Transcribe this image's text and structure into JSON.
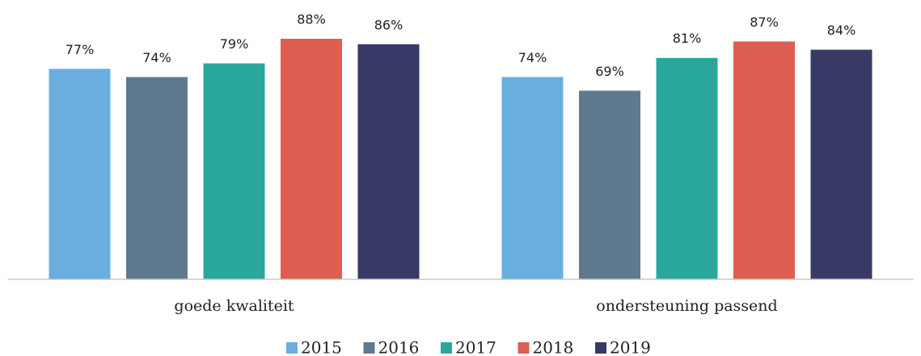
{
  "chart_data": {
    "type": "bar",
    "categories": [
      "goede kwaliteit",
      "ondersteuning passend"
    ],
    "series": [
      {
        "name": "2015",
        "color": "#6aaee0",
        "values": [
          77,
          74
        ],
        "value_labels": [
          "77%",
          "74%"
        ]
      },
      {
        "name": "2016",
        "color": "#5f7a8f",
        "values": [
          74,
          69
        ],
        "value_labels": [
          "74%",
          "69%"
        ]
      },
      {
        "name": "2017",
        "color": "#2aa79c",
        "values": [
          79,
          81
        ],
        "value_labels": [
          "79%",
          "81%"
        ]
      },
      {
        "name": "2018",
        "color": "#df5e52",
        "values": [
          88,
          87
        ],
        "value_labels": [
          "88%",
          "87%"
        ]
      },
      {
        "name": "2019",
        "color": "#383a66",
        "values": [
          86,
          84
        ],
        "value_labels": [
          "86%",
          "84%"
        ]
      }
    ],
    "ylim": [
      0,
      100
    ],
    "legend": "bottom"
  }
}
